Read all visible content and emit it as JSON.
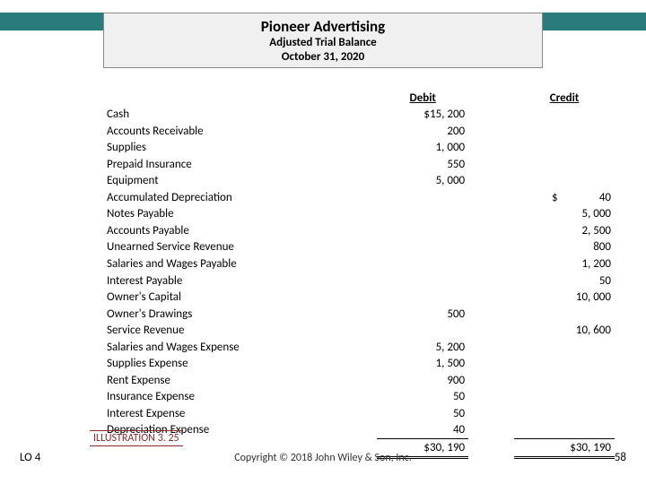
{
  "colors": {
    "teal": "#2a7b7b",
    "header_bg": "#f0f0f0",
    "illustration": "#8a2a2a"
  },
  "header": {
    "company": "Pioneer Advertising",
    "statement": "Adjusted Trial Balance",
    "date": "October 31, 2020"
  },
  "columns": {
    "debit": "Debit",
    "credit": "Credit"
  },
  "rows": [
    {
      "account": "Cash",
      "debit": "$15, 200",
      "credit": ""
    },
    {
      "account": "Accounts Receivable",
      "debit": "200",
      "credit": ""
    },
    {
      "account": "Supplies",
      "debit": "1, 000",
      "credit": ""
    },
    {
      "account": "Prepaid Insurance",
      "debit": "550",
      "credit": ""
    },
    {
      "account": "Equipment",
      "debit": "5, 000",
      "credit": ""
    },
    {
      "account": "Accumulated Depreciation",
      "debit": "",
      "credit": "40",
      "dollar": "$"
    },
    {
      "account": "Notes Payable",
      "debit": "",
      "credit": "5, 000"
    },
    {
      "account": "Accounts Payable",
      "debit": "",
      "credit": "2, 500"
    },
    {
      "account": "Unearned Service Revenue",
      "debit": "",
      "credit": "800"
    },
    {
      "account": "Salaries and Wages Payable",
      "debit": "",
      "credit": "1, 200"
    },
    {
      "account": "Interest Payable",
      "debit": "",
      "credit": "50"
    },
    {
      "account": "Owner's Capital",
      "debit": "",
      "credit": "10, 000"
    },
    {
      "account": "Owner's Drawings",
      "debit": "500",
      "credit": ""
    },
    {
      "account": "Service Revenue",
      "debit": "",
      "credit": "10, 600"
    },
    {
      "account": "Salaries and Wages Expense",
      "debit": "5, 200",
      "credit": ""
    },
    {
      "account": "Supplies Expense",
      "debit": "1, 500",
      "credit": ""
    },
    {
      "account": "Rent Expense",
      "debit": "900",
      "credit": ""
    },
    {
      "account": "Insurance Expense",
      "debit": "50",
      "credit": ""
    },
    {
      "account": "Interest Expense",
      "debit": "50",
      "credit": ""
    },
    {
      "account": "Depreciation Expense",
      "debit": "40",
      "credit": ""
    }
  ],
  "totals": {
    "debit": "$30, 190",
    "credit": "$30, 190"
  },
  "illustration": "ILLUSTRATION 3. 25",
  "lo": "LO 4",
  "copyright": "Copyright © 2018 John Wiley & Son, Inc.",
  "page": "58"
}
